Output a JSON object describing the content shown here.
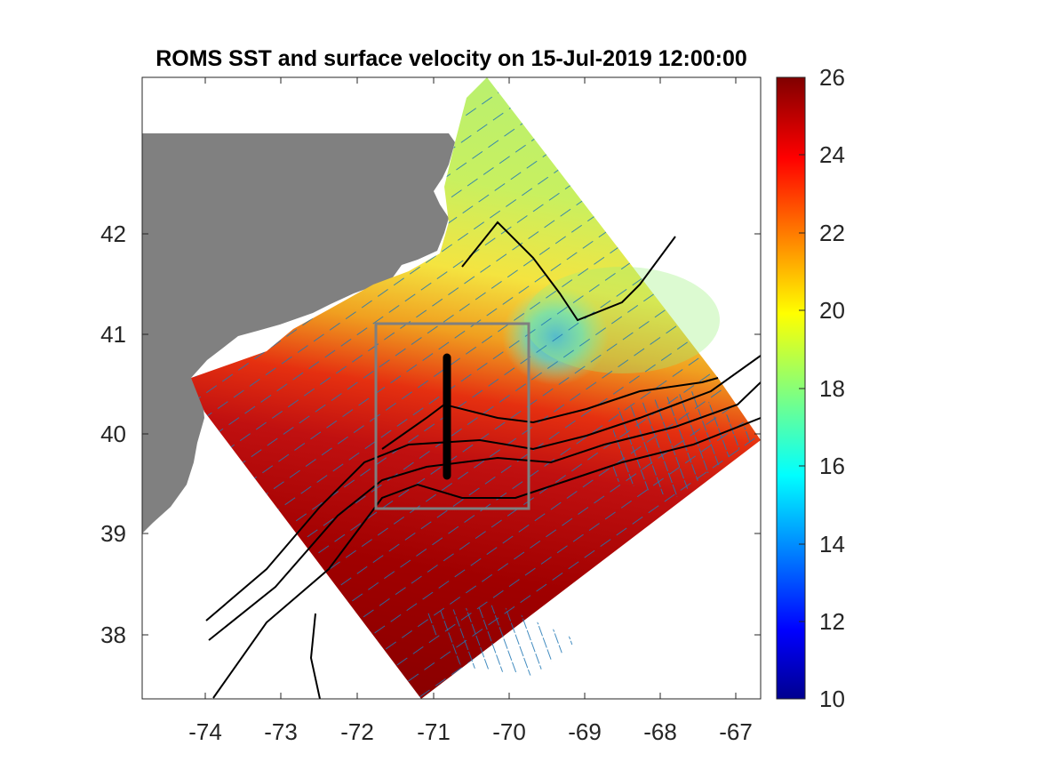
{
  "figure": {
    "title": "ROMS SST and surface velocity on 15-Jul-2019 12:00:00"
  },
  "map": {
    "x_ticks": [
      "-74",
      "-73",
      "-72",
      "-71",
      "-70",
      "-69",
      "-68",
      "-67"
    ],
    "y_ticks": [
      "38",
      "39",
      "40",
      "41",
      "42"
    ],
    "land_color": "#808080",
    "coastline_color": "#000000",
    "bathymetry_contour_color": "#000000",
    "velocity_vector_color": "#1f77b4",
    "subdomain_box_color": "#7f7f7f",
    "transect_color": "#000000"
  },
  "colorbar": {
    "ticks": [
      "10",
      "12",
      "14",
      "16",
      "18",
      "20",
      "22",
      "24",
      "26"
    ],
    "colormap": "jet",
    "min": 10,
    "max": 26
  }
}
